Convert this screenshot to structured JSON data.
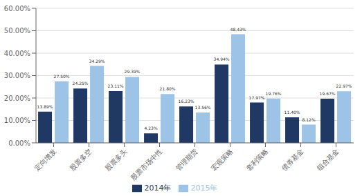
{
  "chart_data": {
    "type": "bar",
    "categories": [
      "定向增发",
      "股票多空",
      "股票多头",
      "股票市场中性",
      "管理期货",
      "宏观策略",
      "套利策略",
      "债券基金",
      "组合基金"
    ],
    "series": [
      {
        "name": "2014年",
        "color": "#1F3864",
        "values": [
          13.89,
          24.25,
          23.11,
          4.23,
          16.23,
          34.94,
          17.97,
          11.4,
          19.67
        ],
        "value_labels": [
          "13.89%",
          "24.25%",
          "23.11%",
          "4.23%",
          "16.23%",
          "34.94%",
          "17.97%",
          "11.40%",
          "19.67%"
        ]
      },
      {
        "name": "2015年",
        "color": "#9DC3E6",
        "values": [
          27.5,
          34.29,
          29.39,
          21.8,
          13.56,
          48.43,
          19.76,
          8.12,
          22.97
        ],
        "value_labels": [
          "27.50%",
          "34.29%",
          "29.39%",
          "21.80%",
          "13.56%",
          "48.43%",
          "19.76%",
          "8.12%",
          "22.97%"
        ]
      }
    ],
    "ylim": [
      0,
      60
    ],
    "yticks": [
      {
        "value": 0,
        "label": "0.00%"
      },
      {
        "value": 10,
        "label": "10.00%"
      },
      {
        "value": 20,
        "label": "20.00%"
      },
      {
        "value": 30,
        "label": "30.00%"
      },
      {
        "value": 40,
        "label": "40.00%"
      },
      {
        "value": 50,
        "label": "50.00%"
      },
      {
        "value": 60,
        "label": "60.00%"
      }
    ],
    "grid": true,
    "data_labels": true,
    "legend": "bottom"
  }
}
